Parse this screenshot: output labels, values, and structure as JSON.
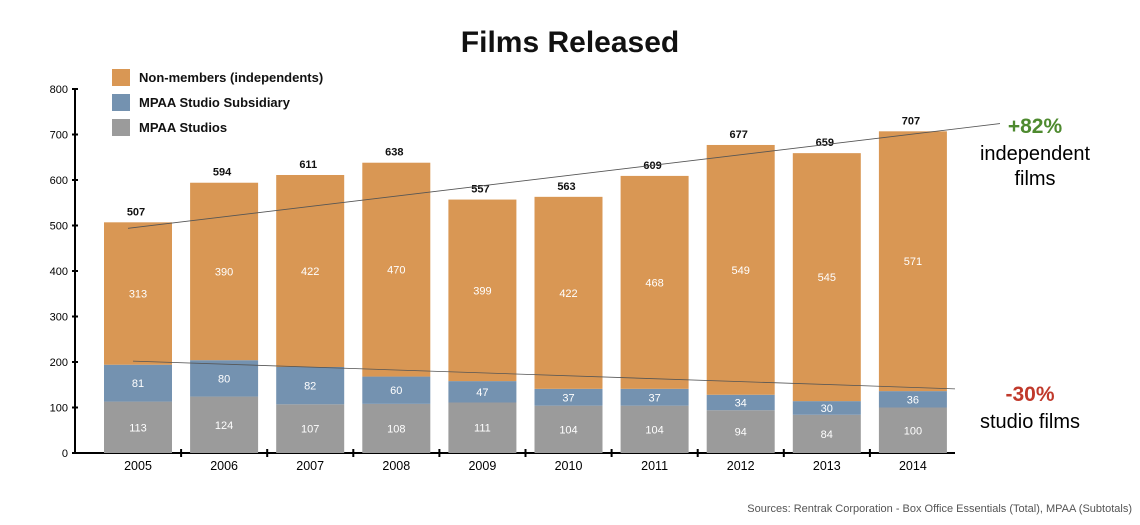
{
  "chart_data": {
    "type": "bar",
    "stacked": true,
    "title": "Films Released",
    "categories": [
      "2005",
      "2006",
      "2007",
      "2008",
      "2009",
      "2010",
      "2011",
      "2012",
      "2013",
      "2014"
    ],
    "series": [
      {
        "name": "MPAA Studios",
        "color": "#9b9b9b",
        "values": [
          113,
          124,
          107,
          108,
          111,
          104,
          104,
          94,
          84,
          100
        ]
      },
      {
        "name": "MPAA Studio Subsidiary",
        "color": "#7492b0",
        "values": [
          81,
          80,
          82,
          60,
          47,
          37,
          37,
          34,
          30,
          36
        ]
      },
      {
        "name": "Non-members (independents)",
        "color": "#d99754",
        "values": [
          313,
          390,
          422,
          470,
          399,
          422,
          468,
          549,
          545,
          571
        ]
      }
    ],
    "totals": [
      507,
      594,
      611,
      638,
      557,
      563,
      609,
      677,
      659,
      707
    ],
    "ylim": [
      0,
      800
    ],
    "yticks": [
      0,
      100,
      200,
      300,
      400,
      500,
      600,
      700,
      800
    ],
    "legend": [
      "Non-members (independents)",
      "MPAA Studio Subsidiary",
      "MPAA Studios"
    ],
    "legend_position": "top-left",
    "annotations": [
      {
        "value": "+82%",
        "label": "independent films",
        "color": "#4e8a2f"
      },
      {
        "value": "-30%",
        "label": "studio films",
        "color": "#c0392b"
      }
    ],
    "source": "Sources: Rentrak Corporation - Box Office Essentials (Total), MPAA (Subtotals)"
  }
}
